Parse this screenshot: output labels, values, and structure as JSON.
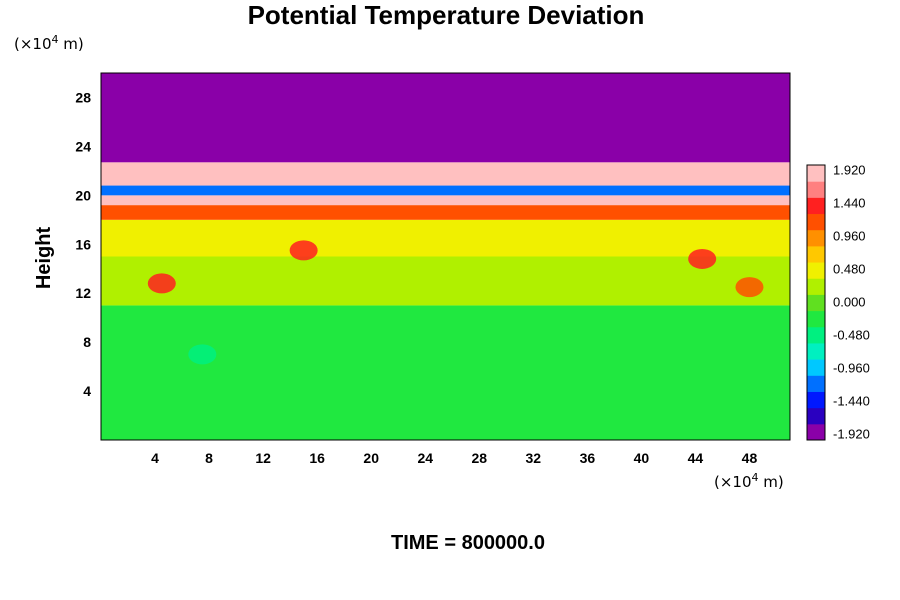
{
  "chart_data": {
    "type": "heatmap",
    "title": "Potential Temperature Deviation",
    "ylabel": "Height",
    "x_unit_prefix": "(×10",
    "x_unit_exp": "4",
    "x_unit_suffix": " m)",
    "y_unit_prefix": "(×10",
    "y_unit_exp": "4",
    "y_unit_suffix": " m)",
    "x_ticks": [
      4,
      8,
      12,
      16,
      20,
      24,
      28,
      32,
      36,
      40,
      44,
      48
    ],
    "y_ticks": [
      4,
      8,
      12,
      16,
      20,
      24,
      28
    ],
    "xlim": [
      0,
      51
    ],
    "ylim": [
      0,
      30
    ],
    "colorbar_labels": [
      "1.920",
      "1.440",
      "0.960",
      "0.480",
      "0.000",
      "-0.480",
      "-0.960",
      "-1.440",
      "-1.920"
    ],
    "colorbar_range": [
      -2.0,
      2.0
    ],
    "colorbar_colors": [
      "#8a00a8",
      "#2a00c0",
      "#0018ff",
      "#0070ff",
      "#00c8ff",
      "#00f0c0",
      "#00f080",
      "#20e840",
      "#60e020",
      "#b0f000",
      "#f0f000",
      "#ffc800",
      "#ff9000",
      "#ff5000",
      "#ff2020",
      "#ff8080",
      "#ffc0c0"
    ],
    "layers": [
      {
        "y0": 0,
        "y1": 11,
        "value": -0.12
      },
      {
        "y0": 11,
        "y1": 15,
        "value": 0.3
      },
      {
        "y0": 15,
        "y1": 18,
        "value": 0.55
      },
      {
        "y0": 18,
        "y1": 19.2,
        "value": 1.1
      },
      {
        "y0": 19.2,
        "y1": 20,
        "value": 1.9
      },
      {
        "y0": 20,
        "y1": 20.8,
        "value": -1.2
      },
      {
        "y0": 20.8,
        "y1": 22.7,
        "value": 1.92
      },
      {
        "y0": 22.7,
        "y1": 30,
        "value": -2.0
      }
    ],
    "blobs": [
      {
        "x": 4.5,
        "y": 12.8,
        "value": 1.4
      },
      {
        "x": 15,
        "y": 15.5,
        "value": 1.3
      },
      {
        "x": 44.5,
        "y": 14.8,
        "value": 1.3
      },
      {
        "x": 48,
        "y": 12.5,
        "value": 1.2
      },
      {
        "x": 7.5,
        "y": 7,
        "value": -0.4
      }
    ],
    "grid": false,
    "legend": "right colorbar"
  },
  "footer": {
    "time_label": "TIME = 800000.0"
  }
}
